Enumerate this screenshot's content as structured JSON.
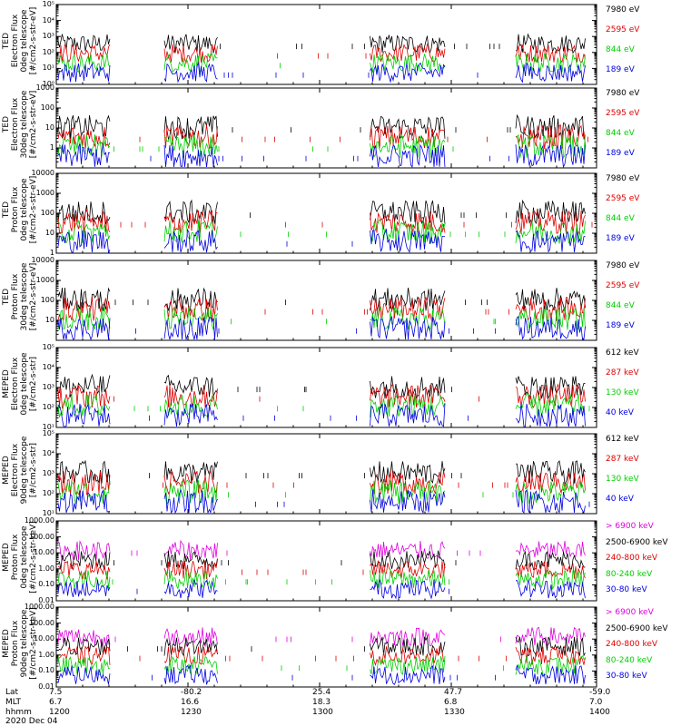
{
  "chart_data": [
    {
      "type": "line",
      "ylabel": [
        "TED",
        "Electron Flux",
        "0deg telescope",
        "[#/cm2-s-str-eV]"
      ],
      "yscale": "log",
      "ylim": [
        1,
        100000
      ],
      "yticks": [
        [
          "1",
          "10⁰",
          0
        ],
        [
          "1",
          "10¹",
          1
        ],
        [
          "1",
          "10²",
          2
        ],
        [
          "1",
          "10³",
          3
        ],
        [
          "1",
          "10⁴",
          4
        ],
        [
          "1",
          "10⁵",
          5
        ]
      ],
      "ytick_labels": [
        "10⁰",
        "10¹",
        "10²",
        "10³",
        "10⁴",
        "10⁵"
      ],
      "series": [
        {
          "name": "7980 eV",
          "color": "#000000"
        },
        {
          "name": "2595 eV",
          "color": "#e00000"
        },
        {
          "name": "844 eV",
          "color": "#00d000"
        },
        {
          "name": "189 eV",
          "color": "#0000e0"
        }
      ]
    },
    {
      "type": "line",
      "ylabel": [
        "TED",
        "Electron Flux",
        "30deg telescope",
        "[#/cm2-s-str-eV]"
      ],
      "yscale": "log",
      "ylim": [
        1,
        10000
      ],
      "ytick_labels": [
        "1",
        "10",
        "100",
        "1000"
      ],
      "series": [
        {
          "name": "7980 eV",
          "color": "#000000"
        },
        {
          "name": "2595 eV",
          "color": "#e00000"
        },
        {
          "name": "844 eV",
          "color": "#00d000"
        },
        {
          "name": "189 eV",
          "color": "#0000e0"
        }
      ]
    },
    {
      "type": "line",
      "ylabel": [
        "TED",
        "Proton Flux",
        "0deg telescope",
        "[#/cm2-s-str-eV]"
      ],
      "yscale": "log",
      "ylim": [
        1,
        10000
      ],
      "ytick_labels": [
        "1",
        "10",
        "100",
        "1000",
        "10000"
      ],
      "series": [
        {
          "name": "7980 eV",
          "color": "#000000"
        },
        {
          "name": "2595 eV",
          "color": "#e00000"
        },
        {
          "name": "844 eV",
          "color": "#00d000"
        },
        {
          "name": "189 eV",
          "color": "#0000e0"
        }
      ]
    },
    {
      "type": "line",
      "ylabel": [
        "TED",
        "Proton Flux",
        "30deg telescope",
        "[#/cm2-s-str-eV]"
      ],
      "yscale": "log",
      "ylim": [
        1,
        10000
      ],
      "ytick_labels": [
        "10",
        "100",
        "1000",
        "10000"
      ],
      "series": [
        {
          "name": "7980 eV",
          "color": "#000000"
        },
        {
          "name": "2595 eV",
          "color": "#e00000"
        },
        {
          "name": "844 eV",
          "color": "#00d000"
        },
        {
          "name": "189 eV",
          "color": "#0000e0"
        }
      ]
    },
    {
      "type": "line",
      "ylabel": [
        "MEPED",
        "Electron Flux",
        "0deg telescope",
        "[#/cm2-s-str]"
      ],
      "yscale": "log",
      "ylim": [
        10,
        100000
      ],
      "ytick_labels": [
        "10¹",
        "10²",
        "10³",
        "10⁴",
        "10⁵"
      ],
      "series": [
        {
          "name": "612 keV",
          "color": "#000000"
        },
        {
          "name": "287 keV",
          "color": "#e00000"
        },
        {
          "name": "130 keV",
          "color": "#00d000"
        },
        {
          "name": "40 keV",
          "color": "#0000e0"
        }
      ]
    },
    {
      "type": "line",
      "ylabel": [
        "MEPED",
        "Electron Flux",
        "90deg telescope",
        "[#/cm2-s-str]"
      ],
      "yscale": "log",
      "ylim": [
        10,
        100000
      ],
      "ytick_labels": [
        "10¹",
        "10²",
        "10³",
        "10⁴",
        "10⁵"
      ],
      "series": [
        {
          "name": "612 keV",
          "color": "#000000"
        },
        {
          "name": "287 keV",
          "color": "#e00000"
        },
        {
          "name": "130 keV",
          "color": "#00d000"
        },
        {
          "name": "40 keV",
          "color": "#0000e0"
        }
      ]
    },
    {
      "type": "line",
      "ylabel": [
        "MEPED",
        "Proton Flux",
        "0deg telescope",
        "[#/cm2-s-str-keV]"
      ],
      "yscale": "log",
      "ylim": [
        0.01,
        1000
      ],
      "ytick_labels": [
        "0.01",
        "0.10",
        "1.00",
        "10.00",
        "100.00",
        "1000.00"
      ],
      "series": [
        {
          "name": "> 6900 keV",
          "color": "#e000e0"
        },
        {
          "name": "2500-6900 keV",
          "color": "#000000"
        },
        {
          "name": "240-800 keV",
          "color": "#e00000"
        },
        {
          "name": "80-240 keV",
          "color": "#00d000"
        },
        {
          "name": "30-80 keV",
          "color": "#0000e0"
        }
      ]
    },
    {
      "type": "line",
      "ylabel": [
        "MEPED",
        "Proton Flux",
        "90deg telescope",
        "[#/cm2-s-str-keV]"
      ],
      "yscale": "log",
      "ylim": [
        0.01,
        1000
      ],
      "ytick_labels": [
        "0.01",
        "0.10",
        "1.00",
        "10.00",
        "100.00",
        "1000.00"
      ],
      "series": [
        {
          "name": "> 6900 keV",
          "color": "#e000e0"
        },
        {
          "name": "2500-6900 keV",
          "color": "#000000"
        },
        {
          "name": "240-800 keV",
          "color": "#e00000"
        },
        {
          "name": "80-240 keV",
          "color": "#00d000"
        },
        {
          "name": "30-80 keV",
          "color": "#0000e0"
        }
      ]
    }
  ],
  "x_axis": {
    "rows": [
      {
        "label": "Lat",
        "values": [
          "7.5",
          "-80.2",
          "25.4",
          "47.7",
          "-59.0"
        ]
      },
      {
        "label": "MLT",
        "values": [
          "6.7",
          "16.6",
          "18.3",
          "6.8",
          "7.0"
        ]
      },
      {
        "label": "hhmm",
        "values": [
          "1200",
          "1230",
          "1300",
          "1330",
          "1400"
        ]
      }
    ],
    "date": "2020 Dec 04"
  }
}
